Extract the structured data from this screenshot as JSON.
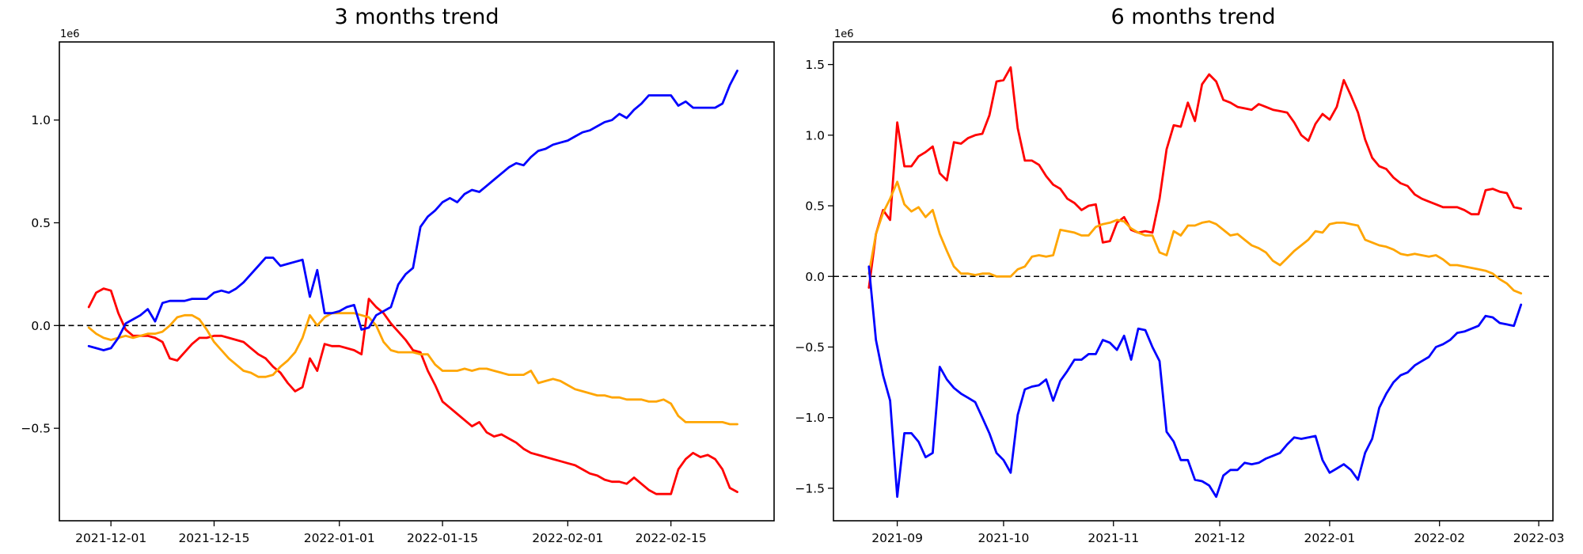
{
  "figure": {
    "background_color": "#ffffff",
    "text_color": "#000000"
  },
  "chart_data": [
    {
      "type": "line",
      "title": "3 months trend",
      "y_offset_label": "1e6",
      "xlabel": "",
      "ylabel": "",
      "grid": false,
      "legend": null,
      "zero_line": {
        "style": "dashed",
        "color": "#000000",
        "value": 0
      },
      "ylim": [
        -0.95,
        1.38
      ],
      "y_unit": "1e6",
      "xlim": [
        "2021-11-24",
        "2022-03-01"
      ],
      "yticks": [
        {
          "value": 1.0,
          "label": "1.0"
        },
        {
          "value": 0.5,
          "label": "0.5"
        },
        {
          "value": 0.0,
          "label": "0.0"
        },
        {
          "value": -0.5,
          "label": "−0.5"
        }
      ],
      "xticks": [
        {
          "date": "2021-12-01",
          "label": "2021-12-01"
        },
        {
          "date": "2021-12-15",
          "label": "2021-12-15"
        },
        {
          "date": "2022-01-01",
          "label": "2022-01-01"
        },
        {
          "date": "2022-01-15",
          "label": "2022-01-15"
        },
        {
          "date": "2022-02-01",
          "label": "2022-02-01"
        },
        {
          "date": "2022-02-15",
          "label": "2022-02-15"
        }
      ],
      "x_start": "2021-11-28",
      "x_step_days": 1,
      "series": [
        {
          "name": "red",
          "color": "#ff0000",
          "values": [
            0.09,
            0.16,
            0.18,
            0.17,
            0.06,
            -0.02,
            -0.05,
            -0.05,
            -0.05,
            -0.06,
            -0.08,
            -0.16,
            -0.17,
            -0.13,
            -0.09,
            -0.06,
            -0.06,
            -0.05,
            -0.05,
            -0.06,
            -0.07,
            -0.08,
            -0.11,
            -0.14,
            -0.16,
            -0.2,
            -0.23,
            -0.28,
            -0.32,
            -0.3,
            -0.16,
            -0.22,
            -0.09,
            -0.1,
            -0.1,
            -0.11,
            -0.12,
            -0.14,
            0.13,
            0.09,
            0.06,
            0.01,
            -0.03,
            -0.07,
            -0.12,
            -0.13,
            -0.22,
            -0.29,
            -0.37,
            -0.4,
            -0.43,
            -0.46,
            -0.49,
            -0.47,
            -0.52,
            -0.54,
            -0.53,
            -0.55,
            -0.57,
            -0.6,
            -0.62,
            -0.63,
            -0.64,
            -0.65,
            -0.66,
            -0.67,
            -0.68,
            -0.7,
            -0.72,
            -0.73,
            -0.75,
            -0.76,
            -0.76,
            -0.77,
            -0.74,
            -0.77,
            -0.8,
            -0.82,
            -0.82,
            -0.82,
            -0.7,
            -0.65,
            -0.62,
            -0.64,
            -0.63,
            -0.65,
            -0.7,
            -0.79,
            -0.81
          ]
        },
        {
          "name": "orange",
          "color": "#ffa500",
          "values": [
            -0.01,
            -0.04,
            -0.06,
            -0.07,
            -0.06,
            -0.05,
            -0.06,
            -0.05,
            -0.04,
            -0.04,
            -0.03,
            0.0,
            0.04,
            0.05,
            0.05,
            0.03,
            -0.02,
            -0.08,
            -0.12,
            -0.16,
            -0.19,
            -0.22,
            -0.23,
            -0.25,
            -0.25,
            -0.24,
            -0.2,
            -0.17,
            -0.13,
            -0.06,
            0.05,
            0.0,
            0.04,
            0.06,
            0.06,
            0.06,
            0.06,
            0.05,
            0.04,
            0.0,
            -0.08,
            -0.12,
            -0.13,
            -0.13,
            -0.13,
            -0.14,
            -0.14,
            -0.19,
            -0.22,
            -0.22,
            -0.22,
            -0.21,
            -0.22,
            -0.21,
            -0.21,
            -0.22,
            -0.23,
            -0.24,
            -0.24,
            -0.24,
            -0.22,
            -0.28,
            -0.27,
            -0.26,
            -0.27,
            -0.29,
            -0.31,
            -0.32,
            -0.33,
            -0.34,
            -0.34,
            -0.35,
            -0.35,
            -0.36,
            -0.36,
            -0.36,
            -0.37,
            -0.37,
            -0.36,
            -0.38,
            -0.44,
            -0.47,
            -0.47,
            -0.47,
            -0.47,
            -0.47,
            -0.47,
            -0.48,
            -0.48
          ]
        },
        {
          "name": "blue",
          "color": "#0000ff",
          "values": [
            -0.1,
            -0.11,
            -0.12,
            -0.11,
            -0.06,
            0.01,
            0.03,
            0.05,
            0.08,
            0.02,
            0.11,
            0.12,
            0.12,
            0.12,
            0.13,
            0.13,
            0.13,
            0.16,
            0.17,
            0.16,
            0.18,
            0.21,
            0.25,
            0.29,
            0.33,
            0.33,
            0.29,
            0.3,
            0.31,
            0.32,
            0.14,
            0.27,
            0.06,
            0.06,
            0.07,
            0.09,
            0.1,
            -0.02,
            -0.01,
            0.05,
            0.07,
            0.09,
            0.2,
            0.25,
            0.28,
            0.48,
            0.53,
            0.56,
            0.6,
            0.62,
            0.6,
            0.64,
            0.66,
            0.65,
            0.68,
            0.71,
            0.74,
            0.77,
            0.79,
            0.78,
            0.82,
            0.85,
            0.86,
            0.88,
            0.89,
            0.9,
            0.92,
            0.94,
            0.95,
            0.97,
            0.99,
            1.0,
            1.03,
            1.01,
            1.05,
            1.08,
            1.12,
            1.12,
            1.12,
            1.12,
            1.07,
            1.09,
            1.06,
            1.06,
            1.06,
            1.06,
            1.08,
            1.17,
            1.24
          ]
        }
      ]
    },
    {
      "type": "line",
      "title": "6 months trend",
      "y_offset_label": "1e6",
      "xlabel": "",
      "ylabel": "",
      "grid": false,
      "legend": null,
      "zero_line": {
        "style": "dashed",
        "color": "#000000",
        "value": 0
      },
      "ylim": [
        -1.73,
        1.66
      ],
      "y_unit": "1e6",
      "xlim": [
        "2021-08-14",
        "2022-03-05"
      ],
      "yticks": [
        {
          "value": 1.5,
          "label": "1.5"
        },
        {
          "value": 1.0,
          "label": "1.0"
        },
        {
          "value": 0.5,
          "label": "0.5"
        },
        {
          "value": 0.0,
          "label": "0.0"
        },
        {
          "value": -0.5,
          "label": "−0.5"
        },
        {
          "value": -1.0,
          "label": "−1.0"
        },
        {
          "value": -1.5,
          "label": "−1.5"
        }
      ],
      "xticks": [
        {
          "date": "2021-09-01",
          "label": "2021-09"
        },
        {
          "date": "2021-10-01",
          "label": "2021-10"
        },
        {
          "date": "2021-11-01",
          "label": "2021-11"
        },
        {
          "date": "2021-12-01",
          "label": "2021-12"
        },
        {
          "date": "2022-01-01",
          "label": "2022-01"
        },
        {
          "date": "2022-02-01",
          "label": "2022-02"
        },
        {
          "date": "2022-03-01",
          "label": "2022-03"
        }
      ],
      "x_start": "2021-08-24",
      "x_step_days": 2,
      "series": [
        {
          "name": "red",
          "color": "#ff0000",
          "values": [
            -0.08,
            0.3,
            0.47,
            0.4,
            1.09,
            0.78,
            0.78,
            0.85,
            0.88,
            0.92,
            0.73,
            0.68,
            0.95,
            0.94,
            0.98,
            1.0,
            1.01,
            1.14,
            1.38,
            1.39,
            1.48,
            1.05,
            0.82,
            0.82,
            0.79,
            0.71,
            0.65,
            0.62,
            0.55,
            0.52,
            0.47,
            0.5,
            0.51,
            0.24,
            0.25,
            0.38,
            0.42,
            0.33,
            0.31,
            0.32,
            0.31,
            0.55,
            0.9,
            1.07,
            1.06,
            1.23,
            1.1,
            1.36,
            1.43,
            1.38,
            1.25,
            1.23,
            1.2,
            1.19,
            1.18,
            1.22,
            1.2,
            1.18,
            1.17,
            1.16,
            1.09,
            1.0,
            0.96,
            1.08,
            1.15,
            1.11,
            1.2,
            1.39,
            1.28,
            1.16,
            0.97,
            0.84,
            0.78,
            0.76,
            0.7,
            0.66,
            0.64,
            0.58,
            0.55,
            0.53,
            0.51,
            0.49,
            0.49,
            0.49,
            0.47,
            0.44,
            0.44,
            0.61,
            0.62,
            0.6,
            0.59,
            0.49,
            0.48
          ]
        },
        {
          "name": "orange",
          "color": "#ffa500",
          "values": [
            0.02,
            0.3,
            0.45,
            0.55,
            0.67,
            0.51,
            0.46,
            0.49,
            0.42,
            0.47,
            0.3,
            0.18,
            0.07,
            0.02,
            0.02,
            0.01,
            0.02,
            0.02,
            0.0,
            0.0,
            0.0,
            0.05,
            0.07,
            0.14,
            0.15,
            0.14,
            0.15,
            0.33,
            0.32,
            0.31,
            0.29,
            0.29,
            0.35,
            0.37,
            0.38,
            0.4,
            0.39,
            0.34,
            0.31,
            0.29,
            0.29,
            0.17,
            0.15,
            0.32,
            0.29,
            0.36,
            0.36,
            0.38,
            0.39,
            0.37,
            0.33,
            0.29,
            0.3,
            0.26,
            0.22,
            0.2,
            0.17,
            0.11,
            0.08,
            0.13,
            0.18,
            0.22,
            0.26,
            0.32,
            0.31,
            0.37,
            0.38,
            0.38,
            0.37,
            0.36,
            0.26,
            0.24,
            0.22,
            0.21,
            0.19,
            0.16,
            0.15,
            0.16,
            0.15,
            0.14,
            0.15,
            0.12,
            0.08,
            0.08,
            0.07,
            0.06,
            0.05,
            0.04,
            0.02,
            -0.02,
            -0.05,
            -0.1,
            -0.12
          ]
        },
        {
          "name": "blue",
          "color": "#0000ff",
          "values": [
            0.07,
            -0.45,
            -0.7,
            -0.88,
            -1.56,
            -1.11,
            -1.11,
            -1.17,
            -1.28,
            -1.25,
            -0.64,
            -0.73,
            -0.79,
            -0.83,
            -0.86,
            -0.89,
            -1.0,
            -1.11,
            -1.25,
            -1.3,
            -1.39,
            -0.98,
            -0.8,
            -0.78,
            -0.77,
            -0.73,
            -0.88,
            -0.74,
            -0.67,
            -0.59,
            -0.59,
            -0.55,
            -0.55,
            -0.45,
            -0.47,
            -0.52,
            -0.42,
            -0.59,
            -0.37,
            -0.38,
            -0.5,
            -0.6,
            -1.1,
            -1.17,
            -1.3,
            -1.3,
            -1.44,
            -1.45,
            -1.48,
            -1.56,
            -1.41,
            -1.37,
            -1.37,
            -1.32,
            -1.33,
            -1.32,
            -1.29,
            -1.27,
            -1.25,
            -1.19,
            -1.14,
            -1.15,
            -1.14,
            -1.13,
            -1.3,
            -1.39,
            -1.36,
            -1.33,
            -1.37,
            -1.44,
            -1.25,
            -1.15,
            -0.93,
            -0.83,
            -0.75,
            -0.7,
            -0.68,
            -0.63,
            -0.6,
            -0.57,
            -0.5,
            -0.48,
            -0.45,
            -0.4,
            -0.39,
            -0.37,
            -0.35,
            -0.28,
            -0.29,
            -0.33,
            -0.34,
            -0.35,
            -0.2
          ]
        }
      ]
    }
  ]
}
